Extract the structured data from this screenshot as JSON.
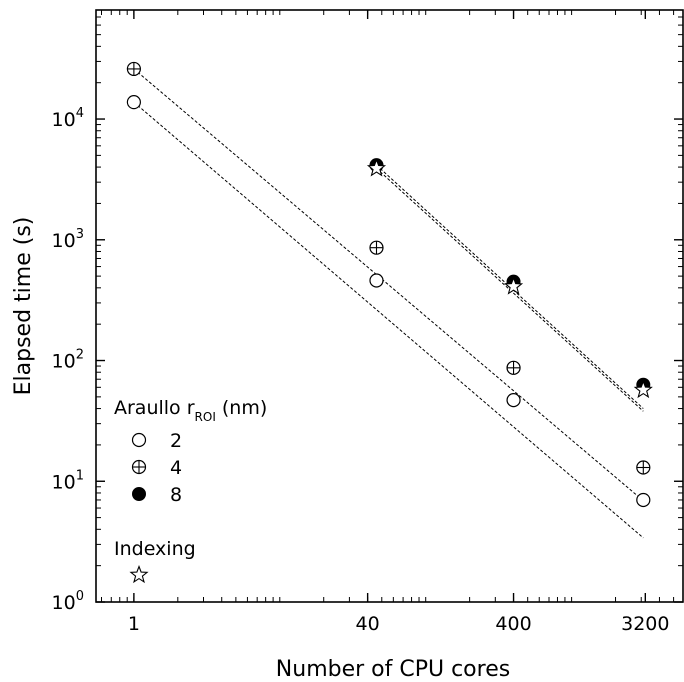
{
  "chart_data": {
    "type": "scatter",
    "xlabel": "Number of CPU cores",
    "ylabel": "Elapsed time (s)",
    "xscale": "log",
    "yscale": "log",
    "xlim": [
      0.55,
      5800
    ],
    "ylim": [
      1,
      80000
    ],
    "x_ticks": [
      {
        "value": 1,
        "label": "1"
      },
      {
        "value": 40,
        "label": "40"
      },
      {
        "value": 400,
        "label": "400"
      },
      {
        "value": 3200,
        "label": "3200"
      }
    ],
    "y_ticks": [
      {
        "value": 1,
        "base": "10",
        "exp": "0"
      },
      {
        "value": 10,
        "base": "10",
        "exp": "1"
      },
      {
        "value": 100,
        "base": "10",
        "exp": "2"
      },
      {
        "value": 1000,
        "base": "10",
        "exp": "3"
      },
      {
        "value": 10000,
        "base": "10",
        "exp": "4"
      }
    ],
    "series": [
      {
        "name": "2",
        "marker": "open-circle",
        "points": [
          [
            1,
            13800
          ],
          [
            46,
            460
          ],
          [
            400,
            47
          ],
          [
            3100,
            7
          ]
        ],
        "fit": [
          [
            1,
            13800
          ],
          [
            3100,
            3.4
          ]
        ]
      },
      {
        "name": "4",
        "marker": "circle-plus",
        "points": [
          [
            1,
            26000
          ],
          [
            46,
            860
          ],
          [
            400,
            87
          ],
          [
            3100,
            13
          ]
        ],
        "fit": [
          [
            1,
            26000
          ],
          [
            3100,
            6.9
          ]
        ]
      },
      {
        "name": "8",
        "marker": "filled-circle",
        "points": [
          [
            46,
            4150
          ],
          [
            400,
            450
          ],
          [
            3100,
            63
          ]
        ],
        "fit": [
          [
            46,
            4150
          ],
          [
            3100,
            40
          ]
        ]
      },
      {
        "name": "Indexing",
        "marker": "star",
        "points": [
          [
            46,
            3900
          ],
          [
            400,
            410
          ],
          [
            3100,
            57
          ]
        ],
        "fit": [
          [
            46,
            3900
          ],
          [
            3100,
            38
          ]
        ]
      }
    ],
    "legend": {
      "placement": "bottom-left",
      "title_main": "Araullo r",
      "title_sub": "ROI",
      "title_unit": " (nm)",
      "entries": [
        "2",
        "4",
        "8"
      ],
      "indexing_label": "Indexing"
    },
    "grid": false
  }
}
